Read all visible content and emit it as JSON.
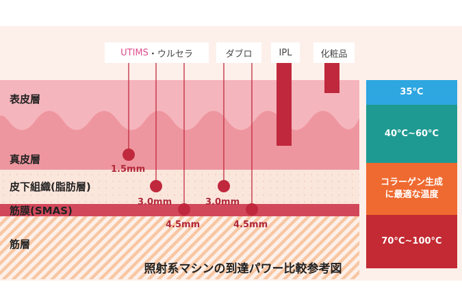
{
  "colors": {
    "page_bg": "#fdf0ea",
    "epidermis": "#f5b5bd",
    "dermis": "#ee969f",
    "subcutaneous": "#fbe6dc",
    "smas": "#d2485b",
    "muscle_stripe_a": "#f8c6a2",
    "muscle_stripe_b": "#fdf0ea",
    "marker": "#c0283d",
    "utims_accent": "#e04d8e",
    "temp_35": "#2ea6e0",
    "temp_40_60": "#1f9a92",
    "collagen": "#ef6a30",
    "temp_70_100": "#c32a33"
  },
  "layers": {
    "epidermis": "表皮層",
    "dermis": "真皮層",
    "subcutaneous": "皮下組織(脂肪層)",
    "smas": "筋膜(SMAS)",
    "muscle": "筋層"
  },
  "devices": {
    "utims": "UTIMS",
    "ulthera": "・ウルセラ",
    "doublo": "ダブロ",
    "ipl": "IPL",
    "cosmetics": "化粧品"
  },
  "depths": {
    "d1": "1.5mm",
    "d2": "3.0mm",
    "d3": "4.5mm",
    "d4": "3.0mm",
    "d5": "4.5mm"
  },
  "temperatures": {
    "t1": "35°C",
    "t2": "40°C~60°C",
    "collagen_line1": "コラーゲン生成",
    "collagen_line2": "に最適な温度",
    "t3": "70°C~100°C"
  },
  "caption": "照射系マシンの到達パワー比較参考図"
}
